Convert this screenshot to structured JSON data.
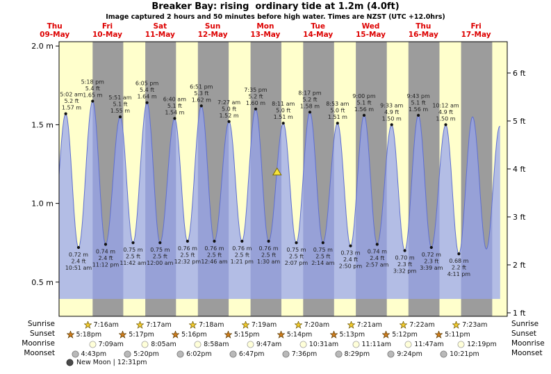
{
  "header": {
    "title": "Breaker Bay: rising  ordinary tide at 1.2m (4.0ft)",
    "subtitle": "Image captured 2 hours and 50 minutes before high water. Times are NZST (UTC +12.0hrs)"
  },
  "days": [
    {
      "dow": "Thu",
      "date": "09-May"
    },
    {
      "dow": "Fri",
      "date": "10-May"
    },
    {
      "dow": "Sat",
      "date": "11-May"
    },
    {
      "dow": "Sun",
      "date": "12-May"
    },
    {
      "dow": "Mon",
      "date": "13-May"
    },
    {
      "dow": "Tue",
      "date": "14-May"
    },
    {
      "dow": "Wed",
      "date": "15-May"
    },
    {
      "dow": "Thu",
      "date": "16-May"
    },
    {
      "dow": "Fri",
      "date": "17-May"
    }
  ],
  "axes": {
    "left_ticks": [
      {
        "label": "2.0 m",
        "value": 2.0
      },
      {
        "label": "1.5 m",
        "value": 1.5
      },
      {
        "label": "1.0 m",
        "value": 1.0
      },
      {
        "label": "0.5 m",
        "value": 0.5
      }
    ],
    "right_ticks": [
      {
        "label": "6 ft",
        "value": 6
      },
      {
        "label": "5 ft",
        "value": 5
      },
      {
        "label": "4 ft",
        "value": 4
      },
      {
        "label": "3 ft",
        "value": 3
      },
      {
        "label": "2 ft",
        "value": 2
      },
      {
        "label": "1 ft",
        "value": 1
      }
    ]
  },
  "chart_data": {
    "type": "area",
    "title": "Breaker Bay tide curve",
    "ylabel_left": "m",
    "ylabel_right": "ft",
    "ylim_m": [
      0.28,
      2.03
    ],
    "draw_from": {
      "day": 9,
      "time": "02:00"
    },
    "draw_until": {
      "day": 17,
      "time": "11:00"
    },
    "events": [
      {
        "kind": "high",
        "day": 9,
        "time": "05:02",
        "height_m": 1.57,
        "height_ft": 5.2,
        "label_lines": [
          "5:02 am",
          "5.2 ft",
          "1.57 m"
        ]
      },
      {
        "kind": "low",
        "day": 9,
        "time": "10:51",
        "height_m": 0.72,
        "height_ft": 2.4,
        "label_lines": [
          "0.72 m",
          "2.4 ft",
          "10:51 am"
        ]
      },
      {
        "kind": "high",
        "day": 9,
        "time": "17:18",
        "height_m": 1.65,
        "height_ft": 5.4,
        "label_lines": [
          "5:18 pm",
          "5.4 ft",
          "1.65 m"
        ]
      },
      {
        "kind": "low",
        "day": 9,
        "time": "23:12",
        "height_m": 0.74,
        "height_ft": 2.4,
        "label_lines": [
          "0.74 m",
          "2.4 ft",
          "11:12 pm"
        ]
      },
      {
        "kind": "high",
        "day": 10,
        "time": "05:51",
        "height_m": 1.55,
        "height_ft": 5.1,
        "label_lines": [
          "5:51 am",
          "5.1 ft",
          "1.55 m"
        ]
      },
      {
        "kind": "low",
        "day": 10,
        "time": "11:42",
        "height_m": 0.75,
        "height_ft": 2.5,
        "label_lines": [
          "0.75 m",
          "2.5 ft",
          "11:42 am"
        ]
      },
      {
        "kind": "high",
        "day": 10,
        "time": "18:05",
        "height_m": 1.64,
        "height_ft": 5.4,
        "label_lines": [
          "6:05 pm",
          "5.4 ft",
          "1.64 m"
        ]
      },
      {
        "kind": "low",
        "day": 11,
        "time": "00:00",
        "height_m": 0.75,
        "height_ft": 2.5,
        "label_lines": [
          "0.75 m",
          "2.5 ft",
          "12:00 am"
        ]
      },
      {
        "kind": "high",
        "day": 11,
        "time": "06:40",
        "height_m": 1.54,
        "height_ft": 5.1,
        "label_lines": [
          "6:40 am",
          "5.1 ft",
          "1.54 m"
        ]
      },
      {
        "kind": "low",
        "day": 11,
        "time": "12:32",
        "height_m": 0.76,
        "height_ft": 2.5,
        "label_lines": [
          "0.76 m",
          "2.5 ft",
          "12:32 pm"
        ]
      },
      {
        "kind": "high",
        "day": 11,
        "time": "18:51",
        "height_m": 1.62,
        "height_ft": 5.3,
        "label_lines": [
          "6:51 pm",
          "5.3 ft",
          "1.62 m"
        ]
      },
      {
        "kind": "low",
        "day": 12,
        "time": "00:46",
        "height_m": 0.76,
        "height_ft": 2.5,
        "label_lines": [
          "0.76 m",
          "2.5 ft",
          "12:46 am"
        ]
      },
      {
        "kind": "high",
        "day": 12,
        "time": "07:27",
        "height_m": 1.52,
        "height_ft": 5.0,
        "label_lines": [
          "7:27 am",
          "5.0 ft",
          "1.52 m"
        ]
      },
      {
        "kind": "low",
        "day": 12,
        "time": "13:21",
        "height_m": 0.76,
        "height_ft": 2.5,
        "label_lines": [
          "0.76 m",
          "2.5 ft",
          "1:21 pm"
        ]
      },
      {
        "kind": "high",
        "day": 12,
        "time": "19:35",
        "height_m": 1.6,
        "height_ft": 5.2,
        "label_lines": [
          "7:35 pm",
          "5.2 ft",
          "1.60 m"
        ]
      },
      {
        "kind": "low",
        "day": 13,
        "time": "01:30",
        "height_m": 0.76,
        "height_ft": 2.5,
        "label_lines": [
          "0.76 m",
          "2.5 ft",
          "1:30 am"
        ]
      },
      {
        "kind": "high",
        "day": 13,
        "time": "08:11",
        "height_m": 1.51,
        "height_ft": 5.0,
        "label_lines": [
          "8:11 am",
          "5.0 ft",
          "1.51 m"
        ]
      },
      {
        "kind": "low",
        "day": 13,
        "time": "14:07",
        "height_m": 0.75,
        "height_ft": 2.5,
        "label_lines": [
          "0.75 m",
          "2.5 ft",
          "2:07 pm"
        ]
      },
      {
        "kind": "high",
        "day": 13,
        "time": "20:17",
        "height_m": 1.58,
        "height_ft": 5.2,
        "label_lines": [
          "8:17 pm",
          "5.2 ft",
          "1.58 m"
        ]
      },
      {
        "kind": "low",
        "day": 14,
        "time": "02:14",
        "height_m": 0.75,
        "height_ft": 2.5,
        "label_lines": [
          "0.75 m",
          "2.5 ft",
          "2:14 am"
        ]
      },
      {
        "kind": "high",
        "day": 14,
        "time": "08:53",
        "height_m": 1.51,
        "height_ft": 5.0,
        "label_lines": [
          "8:53 am",
          "5.0 ft",
          "1.51 m"
        ]
      },
      {
        "kind": "low",
        "day": 14,
        "time": "14:50",
        "height_m": 0.73,
        "height_ft": 2.4,
        "label_lines": [
          "0.73 m",
          "2.4 ft",
          "2:50 pm"
        ]
      },
      {
        "kind": "high",
        "day": 14,
        "time": "21:00",
        "height_m": 1.56,
        "height_ft": 5.1,
        "label_lines": [
          "9:00 pm",
          "5.1 ft",
          "1.56 m"
        ]
      },
      {
        "kind": "low",
        "day": 15,
        "time": "02:57",
        "height_m": 0.74,
        "height_ft": 2.4,
        "label_lines": [
          "0.74 m",
          "2.4 ft",
          "2:57 am"
        ]
      },
      {
        "kind": "high",
        "day": 15,
        "time": "09:33",
        "height_m": 1.5,
        "height_ft": 4.9,
        "label_lines": [
          "9:33 am",
          "4.9 ft",
          "1.50 m"
        ]
      },
      {
        "kind": "low",
        "day": 15,
        "time": "15:32",
        "height_m": 0.7,
        "height_ft": 2.3,
        "label_lines": [
          "0.70 m",
          "2.3 ft",
          "3:32 pm"
        ]
      },
      {
        "kind": "high",
        "day": 15,
        "time": "21:43",
        "height_m": 1.56,
        "height_ft": 5.1,
        "label_lines": [
          "9:43 pm",
          "5.1 ft",
          "1.56 m"
        ]
      },
      {
        "kind": "low",
        "day": 16,
        "time": "03:39",
        "height_m": 0.72,
        "height_ft": 2.3,
        "label_lines": [
          "0.72 m",
          "2.3 ft",
          "3:39 am"
        ]
      },
      {
        "kind": "high",
        "day": 16,
        "time": "10:12",
        "height_m": 1.5,
        "height_ft": 4.9,
        "label_lines": [
          "10:12 am",
          "4.9 ft",
          "1.50 m"
        ]
      },
      {
        "kind": "low",
        "day": 16,
        "time": "16:11",
        "height_m": 0.68,
        "height_ft": 2.2,
        "label_lines": [
          "0.68 m",
          "2.2 ft",
          "4:11 pm"
        ]
      }
    ],
    "unlabeled_curve_points": [
      {
        "day": 8,
        "time": "22:40",
        "height_m": 0.73
      },
      {
        "day": 16,
        "time": "22:26",
        "height_m": 1.55
      },
      {
        "day": 17,
        "time": "04:43",
        "height_m": 0.71
      },
      {
        "day": 17,
        "time": "10:49",
        "height_m": 1.49
      }
    ],
    "current_marker": {
      "day": 13,
      "time": "05:21",
      "height_m": 1.2,
      "height_ft": 4.0,
      "note": "rising ordinary tide at 1.2m (4.0ft)"
    }
  },
  "astro": {
    "rows": [
      {
        "label": "Sunrise",
        "icon": "sunrise-star",
        "times": [
          "7:16am",
          "7:17am",
          "7:18am",
          "7:19am",
          "7:20am",
          "7:21am",
          "7:22am",
          "7:23am"
        ]
      },
      {
        "label": "Sunset",
        "icon": "sunset-star",
        "times": [
          "5:18pm",
          "5:17pm",
          "5:16pm",
          "5:15pm",
          "5:14pm",
          "5:13pm",
          "5:12pm",
          "5:11pm"
        ]
      },
      {
        "label": "Moonrise",
        "icon": "moonrise-moon",
        "times": [
          "7:09am",
          "8:05am",
          "8:58am",
          "9:47am",
          "10:31am",
          "11:11am",
          "11:47am",
          "12:19pm"
        ]
      },
      {
        "label": "Moonset",
        "icon": "moonset-moon",
        "times": [
          "4:43pm",
          "5:20pm",
          "6:02pm",
          "6:47pm",
          "7:36pm",
          "8:29pm",
          "9:24pm",
          "10:21pm"
        ]
      }
    ],
    "new_moon": "New Moon | 12:31pm"
  },
  "colors": {
    "plot_background": "#ffffcc",
    "night_band": "#9c9c9c",
    "tide_fill": "rgba(150,163,238,0.72)",
    "tide_stroke": "#5f6fd0",
    "day_label": "#dd0000",
    "current_marker_fill": "#f5e23d",
    "current_marker_stroke": "#7a6a00",
    "sunrise_star": "#f4cc2e",
    "sunset_star": "#cf7d1e",
    "moonrise_fill": "#ffffd9",
    "moonset_fill": "#b9b9b9",
    "new_moon_fill": "#4a4a4a"
  }
}
